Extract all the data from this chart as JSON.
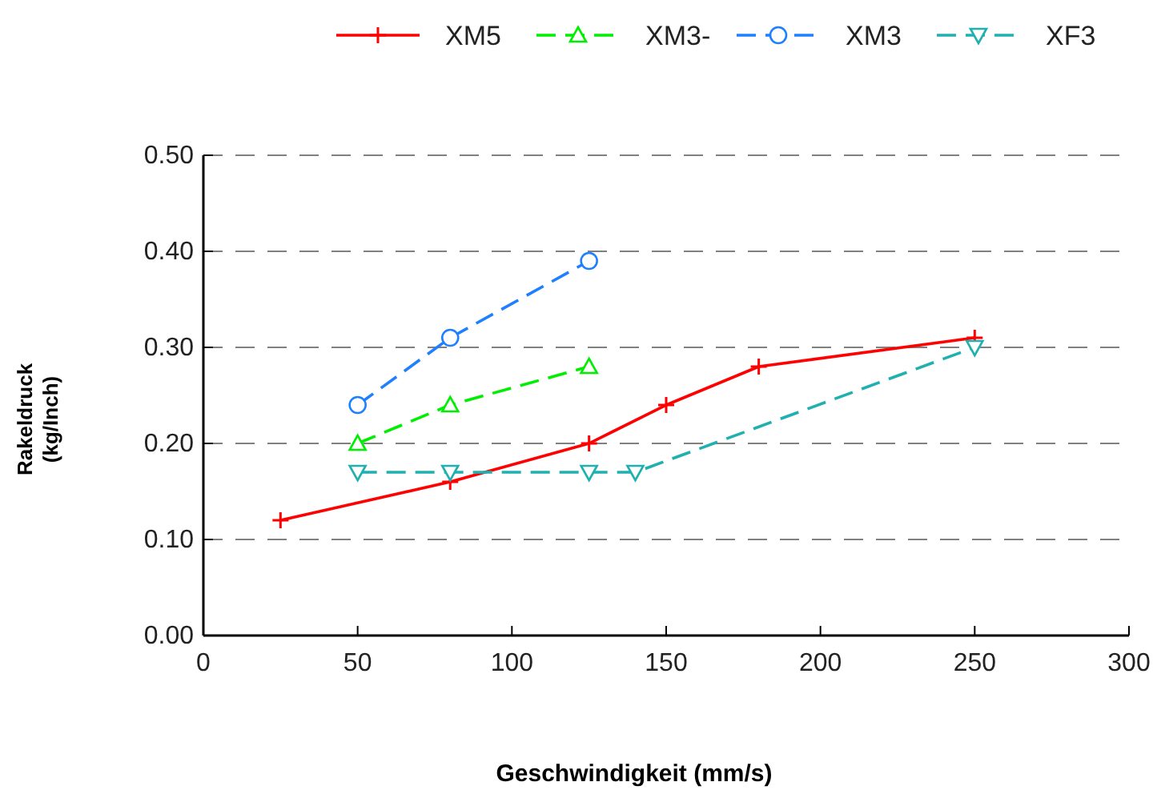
{
  "chart_data": {
    "type": "line",
    "xlabel": "Geschwindigkeit (mm/s)",
    "ylabel": "Rakeldruck\n(kg/Inch)",
    "xlim": [
      0,
      300
    ],
    "xticks": [
      0,
      50,
      100,
      150,
      200,
      250,
      300
    ],
    "ylim": [
      0,
      0.5
    ],
    "yticks": [
      {
        "value": 0,
        "label": "0.00"
      },
      {
        "value": 0.1,
        "label": "0.10"
      },
      {
        "value": 0.2,
        "label": "0.20"
      },
      {
        "value": 0.3,
        "label": "0.30"
      },
      {
        "value": 0.4,
        "label": "0.40"
      },
      {
        "value": 0.5,
        "label": "0.50"
      }
    ],
    "grid": "y",
    "legend": "top",
    "series": [
      {
        "name": "XM5",
        "color": "#ff0000",
        "x": [
          25,
          80,
          125,
          150,
          180,
          250
        ],
        "values": [
          0.12,
          0.16,
          0.2,
          0.24,
          0.28,
          0.31
        ],
        "marker": "cross",
        "line_style": "solid"
      },
      {
        "name": "XM3-",
        "color": "#00ee00",
        "x": [
          50,
          80,
          125
        ],
        "values": [
          0.2,
          0.24,
          0.28
        ],
        "marker": "triangle",
        "line_style": "dashed"
      },
      {
        "name": "XM3",
        "color": "#1e7fff",
        "x": [
          50,
          80,
          125
        ],
        "values": [
          0.24,
          0.31,
          0.39
        ],
        "marker": "circle",
        "line_style": "dashed"
      },
      {
        "name": "XF3",
        "color": "#20b0b0",
        "x": [
          50,
          80,
          125,
          140,
          250
        ],
        "values": [
          0.17,
          0.17,
          0.17,
          0.17,
          0.3
        ],
        "marker": "triangle-down",
        "line_style": "dashed"
      }
    ]
  }
}
